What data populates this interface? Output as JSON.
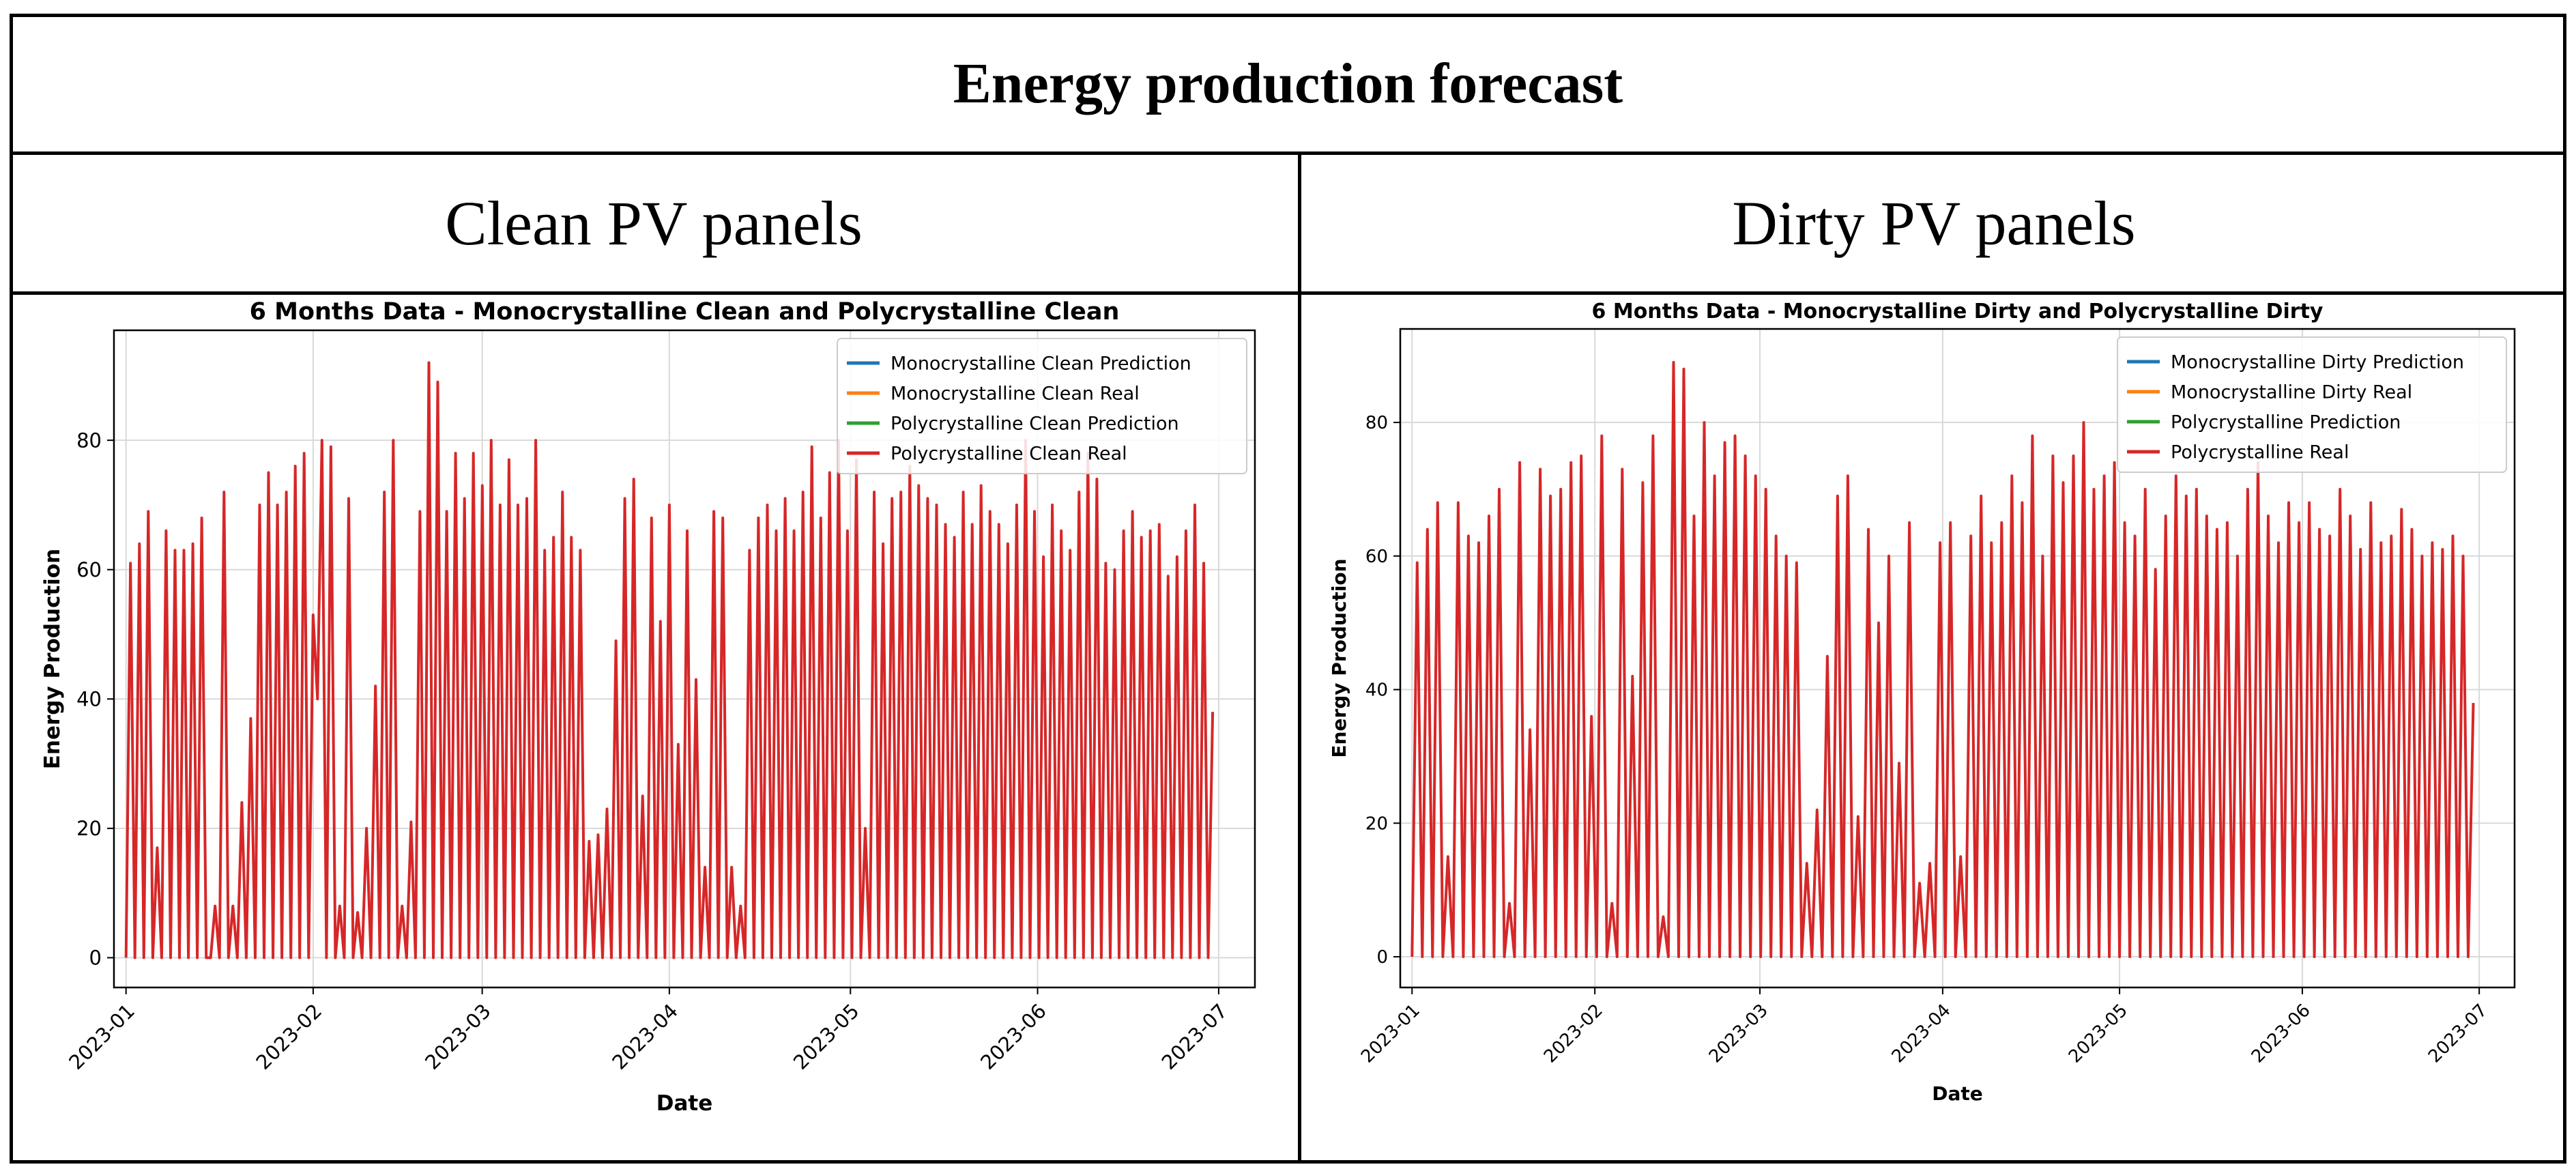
{
  "header": {
    "title": "Energy production forecast"
  },
  "columns": [
    {
      "label": "Clean PV panels"
    },
    {
      "label": "Dirty PV panels"
    }
  ],
  "colors": {
    "blue": "#1f77b4",
    "orange": "#ff7f0e",
    "green": "#2ca02c",
    "red": "#d62728"
  },
  "chart_data": [
    {
      "type": "line",
      "title": "6 Months Data - Monocrystalline Clean and Polycrystalline Clean",
      "xlabel": "Date",
      "ylabel": "Energy Production",
      "x_ticks": [
        "2023-01",
        "2023-02",
        "2023-03",
        "2023-04",
        "2023-05",
        "2023-06",
        "2023-07"
      ],
      "y_ticks": [
        0,
        20,
        40,
        60,
        80
      ],
      "xlim": [
        -2,
        187
      ],
      "ylim": [
        -4.6,
        97
      ],
      "grid": true,
      "legend_position": "top-right",
      "series": [
        {
          "name": "Monocrystalline Clean Prediction",
          "color": "#1f77b4",
          "values": []
        },
        {
          "name": "Monocrystalline Clean Real",
          "color": "#ff7f0e",
          "values": []
        },
        {
          "name": "Polycrystalline Clean Prediction",
          "color": "#2ca02c",
          "values": []
        },
        {
          "name": "Polycrystalline Clean Real",
          "color": "#d62728",
          "values": [
            0,
            61,
            0,
            64,
            0,
            69,
            0,
            17,
            0,
            66,
            0,
            63,
            0,
            63,
            0,
            64,
            0,
            68,
            0,
            0,
            8,
            0,
            72,
            0,
            8,
            0,
            24,
            0,
            37,
            0,
            70,
            0,
            75,
            0,
            70,
            0,
            72,
            0,
            76,
            0,
            78,
            0,
            53,
            40,
            80,
            0,
            79,
            0,
            8,
            0,
            71,
            0,
            7,
            0,
            20,
            0,
            42,
            0,
            72,
            0,
            80,
            0,
            8,
            0,
            21,
            0,
            69,
            0,
            92,
            0,
            89,
            0,
            69,
            0,
            78,
            0,
            71,
            0,
            78,
            0,
            73,
            0,
            80,
            0,
            70,
            0,
            77,
            0,
            70,
            0,
            71,
            0,
            80,
            0,
            63,
            0,
            65,
            0,
            72,
            0,
            65,
            0,
            63,
            0,
            18,
            0,
            19,
            0,
            23,
            0,
            49,
            0,
            71,
            0,
            74,
            0,
            25,
            0,
            68,
            0,
            52,
            0,
            70,
            0,
            33,
            0,
            66,
            0,
            43,
            0,
            14,
            0,
            69,
            0,
            68,
            0,
            14,
            0,
            8,
            0,
            63,
            0,
            68,
            0,
            70,
            0,
            66,
            0,
            71,
            0,
            66,
            0,
            72,
            0,
            79,
            0,
            68,
            0,
            75,
            0,
            80,
            0,
            66,
            0,
            77,
            0,
            20,
            0,
            72,
            0,
            64,
            0,
            71,
            0,
            72,
            0,
            76,
            0,
            73,
            0,
            71,
            0,
            70,
            0,
            67,
            0,
            65,
            0,
            72,
            0,
            67,
            0,
            73,
            0,
            69,
            0,
            67,
            0,
            64,
            0,
            70,
            0,
            80,
            0,
            69,
            0,
            62,
            0,
            70,
            0,
            66,
            0,
            63,
            0,
            72,
            0,
            78,
            0,
            74,
            0,
            61,
            0,
            60,
            0,
            66,
            0,
            69,
            0,
            65,
            0,
            66,
            0,
            67,
            0,
            59,
            0,
            62,
            0,
            66,
            0,
            70,
            0,
            61,
            0,
            38
          ]
        }
      ]
    },
    {
      "type": "line",
      "title": "6 Months Data - Monocrystalline Dirty and Polycrystalline Dirty",
      "xlabel": "Date",
      "ylabel": "Energy Production",
      "x_ticks": [
        "2023-01",
        "2023-02",
        "2023-03",
        "2023-04",
        "2023-05",
        "2023-06",
        "2023-07"
      ],
      "y_ticks": [
        0,
        20,
        40,
        60,
        80
      ],
      "xlim": [
        -2,
        187
      ],
      "ylim": [
        -4.6,
        94
      ],
      "grid": true,
      "legend_position": "top-right",
      "series": [
        {
          "name": "Monocrystalline Dirty Prediction",
          "color": "#1f77b4",
          "values": []
        },
        {
          "name": "Monocrystalline Dirty Real",
          "color": "#ff7f0e",
          "values": []
        },
        {
          "name": "Polycrystalline Prediction",
          "color": "#2ca02c",
          "values": []
        },
        {
          "name": "Polycrystalline Real",
          "color": "#d62728",
          "values": [
            0,
            59,
            0,
            64,
            0,
            68,
            0,
            15,
            0,
            68,
            0,
            63,
            0,
            62,
            0,
            66,
            0,
            70,
            0,
            8,
            0,
            74,
            0,
            34,
            0,
            73,
            0,
            69,
            0,
            70,
            0,
            74,
            0,
            75,
            0,
            36,
            0,
            78,
            0,
            8,
            0,
            73,
            0,
            42,
            0,
            71,
            0,
            78,
            0,
            6,
            0,
            89,
            0,
            88,
            0,
            66,
            0,
            80,
            0,
            72,
            0,
            77,
            0,
            78,
            0,
            75,
            0,
            72,
            0,
            70,
            0,
            63,
            0,
            60,
            0,
            59,
            0,
            14,
            0,
            22,
            0,
            45,
            0,
            69,
            0,
            72,
            0,
            21,
            0,
            64,
            0,
            50,
            0,
            60,
            0,
            29,
            0,
            65,
            0,
            11,
            0,
            14,
            0,
            62,
            0,
            65,
            0,
            15,
            0,
            63,
            0,
            69,
            0,
            62,
            0,
            65,
            0,
            72,
            0,
            68,
            0,
            78,
            0,
            60,
            0,
            75,
            0,
            71,
            0,
            75,
            0,
            80,
            0,
            70,
            0,
            72,
            0,
            74,
            0,
            65,
            0,
            63,
            0,
            70,
            0,
            58,
            0,
            66,
            0,
            72,
            0,
            69,
            0,
            70,
            0,
            66,
            0,
            64,
            0,
            65,
            0,
            60,
            0,
            70,
            0,
            74,
            0,
            66,
            0,
            62,
            0,
            68,
            0,
            65,
            0,
            68,
            0,
            64,
            0,
            63,
            0,
            70,
            0,
            66,
            0,
            61,
            0,
            68,
            0,
            62,
            0,
            63,
            0,
            67,
            0,
            64,
            0,
            60,
            0,
            62,
            0,
            61,
            0,
            63,
            0,
            60,
            0,
            38
          ]
        }
      ]
    }
  ]
}
